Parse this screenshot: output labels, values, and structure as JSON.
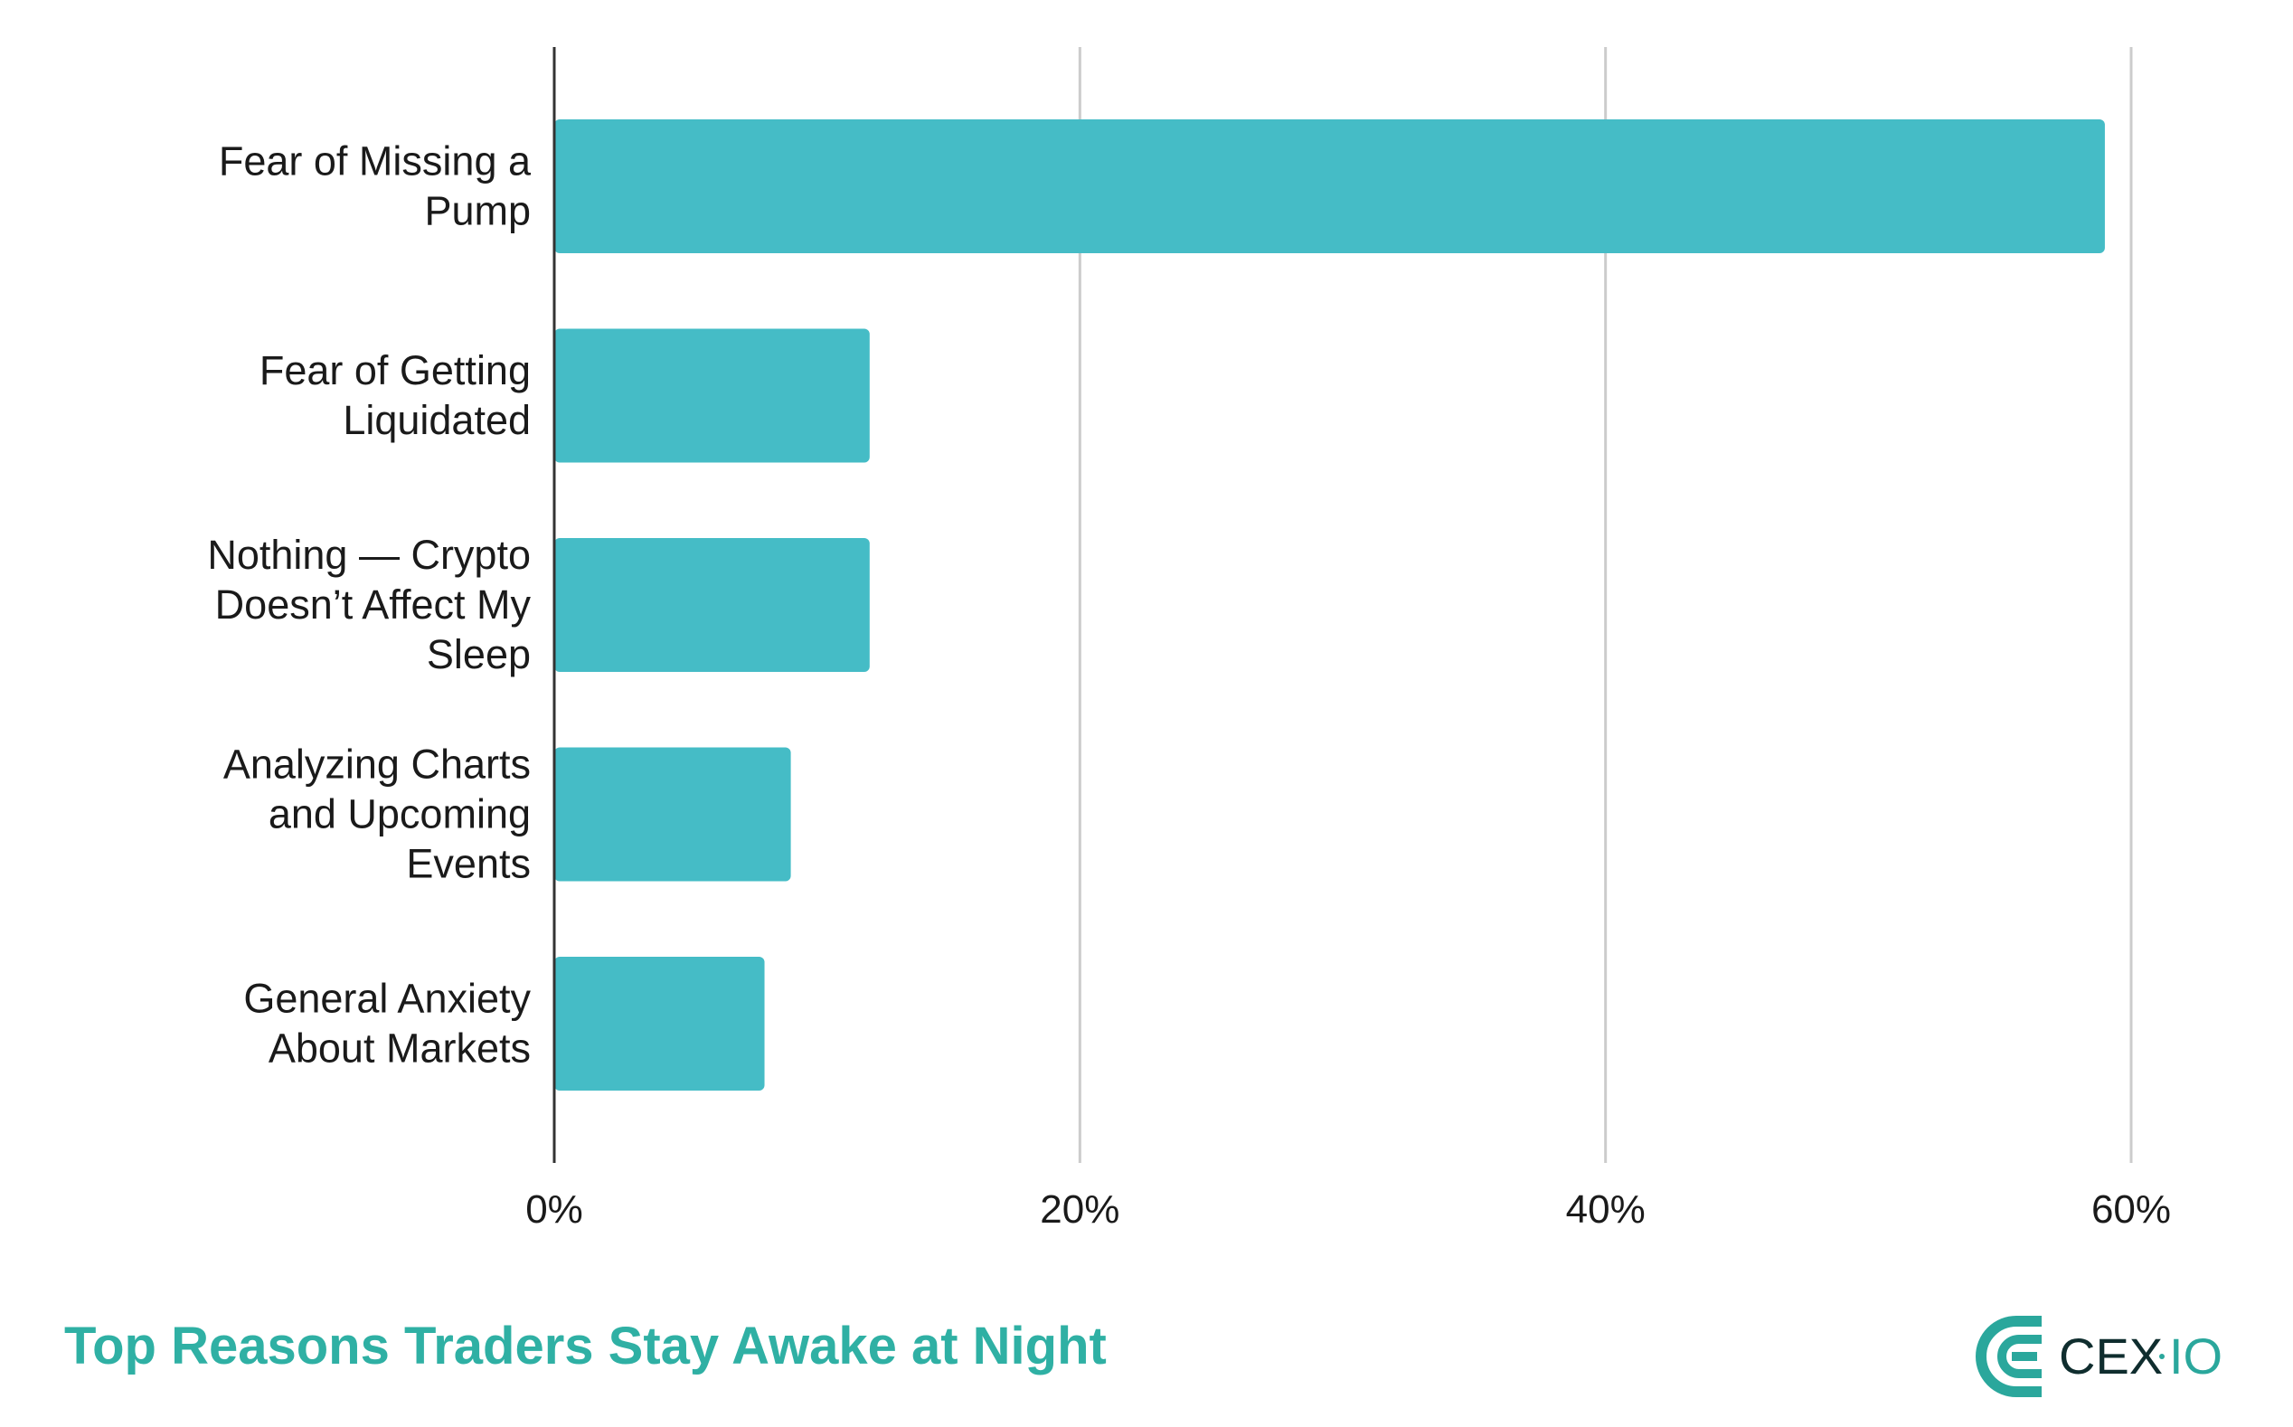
{
  "chart_data": {
    "type": "bar",
    "orientation": "horizontal",
    "title": "Top Reasons Traders Stay Awake at Night",
    "categories": [
      [
        "Fear of Missing a",
        "Pump"
      ],
      [
        "Fear of Getting",
        "Liquidated"
      ],
      [
        "Nothing — Crypto",
        "Doesn’t Affect My",
        "Sleep"
      ],
      [
        "Analyzing Charts",
        "and Upcoming",
        "Events"
      ],
      [
        "General Anxiety",
        "About Markets"
      ]
    ],
    "values": [
      59,
      12,
      12,
      9,
      8
    ],
    "unit": "%",
    "xlim": [
      0,
      60
    ],
    "xticks": [
      "0%",
      "20%",
      "40%",
      "60%"
    ],
    "grid": true,
    "bar_color": "#45bcc6",
    "title_color": "#2fb0a4"
  },
  "brand": {
    "logo_text": "CEX·IO",
    "primary": "#2aa79c",
    "dark": "#0f2d2e"
  }
}
